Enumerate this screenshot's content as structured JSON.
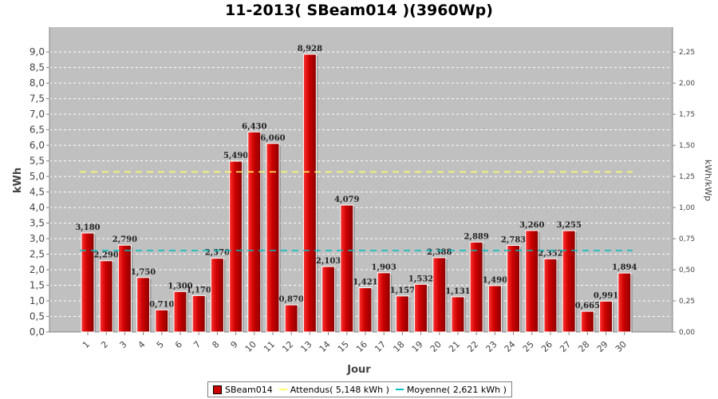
{
  "title": "11-2013( SBeam014 )(3960Wp)",
  "chart_data": {
    "type": "bar",
    "categories": [
      "1",
      "2",
      "3",
      "4",
      "5",
      "6",
      "7",
      "8",
      "9",
      "10",
      "11",
      "12",
      "13",
      "14",
      "15",
      "16",
      "17",
      "18",
      "19",
      "20",
      "21",
      "22",
      "23",
      "24",
      "25",
      "26",
      "27",
      "28",
      "29",
      "30"
    ],
    "series": [
      {
        "name": "SBeam014",
        "values": [
          3.18,
          2.29,
          2.79,
          1.75,
          0.71,
          1.3,
          1.17,
          2.37,
          5.49,
          6.43,
          6.06,
          0.87,
          8.928,
          2.103,
          4.079,
          1.421,
          1.903,
          1.157,
          1.532,
          2.388,
          1.131,
          2.889,
          1.49,
          2.783,
          3.26,
          2.352,
          3.255,
          0.665,
          0.991,
          1.894
        ],
        "labels": [
          "3,180",
          "2,290",
          "2,790",
          "1,750",
          "0,710",
          "1,300",
          "1,170",
          "2,370",
          "5,490",
          "6,430",
          "6,060",
          "0,870",
          "8,928",
          "2,103",
          "4,079",
          "1,421",
          "1,903",
          "1,157",
          "1,532",
          "2,388",
          "1,131",
          "2,889",
          "1,490",
          "2,783",
          "3,260",
          "2,352",
          "3,255",
          "0,665",
          "0,991",
          "1,894"
        ]
      }
    ],
    "reference_lines": [
      {
        "name": "Attendus",
        "value": 5.148
      },
      {
        "name": "Moyenne",
        "value": 2.621
      }
    ],
    "xlabel": "Jour",
    "ylabel": "kWh",
    "y2label": "kWh/kWp",
    "ylim": [
      0,
      9.8
    ],
    "y_ticks": [
      "0,0",
      "0,5",
      "1,0",
      "1,5",
      "2,0",
      "2,5",
      "3,0",
      "3,5",
      "4,0",
      "4,5",
      "5,0",
      "5,5",
      "6,0",
      "6,5",
      "7,0",
      "7,5",
      "8,0",
      "8,5",
      "9,0"
    ],
    "y2lim": [
      0,
      2.45
    ],
    "y2_ticks": [
      "0,00",
      "0,25",
      "0,50",
      "0,75",
      "1,00",
      "1,25",
      "1,50",
      "1,75",
      "2,00",
      "2,25"
    ],
    "grid": true,
    "legend_position": "bottom"
  },
  "legend": {
    "bar_label": "SBeam014",
    "expected_label": "Attendus( 5,148 kWh )",
    "average_label": "Moyenne( 2,621 kWh )"
  },
  "colors": {
    "bar": "#cc0000",
    "plot_background": "#c0c0c0",
    "expected_line": "#ffff66",
    "average_line": "#00bfbf"
  }
}
